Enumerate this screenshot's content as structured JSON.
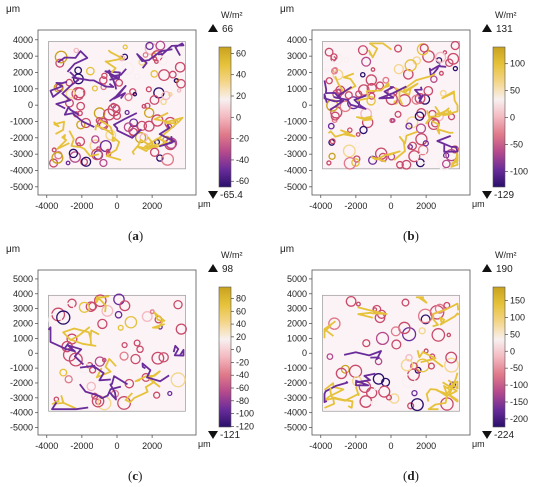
{
  "chart_data": [
    {
      "type": "heatmap",
      "panel_label": "a",
      "unit": "W/m²",
      "axis_unit": "μm",
      "xlim": [
        -4500,
        4500
      ],
      "ylim": [
        -5500,
        4600
      ],
      "x_ticks": [
        -4000,
        -2000,
        0,
        2000
      ],
      "y_ticks": [
        4000,
        3000,
        2000,
        1000,
        0,
        -1000,
        -2000,
        -3000,
        -4000,
        -5000
      ],
      "color_range": [
        -65.4,
        66
      ],
      "color_ticks": [
        60,
        40,
        20,
        0,
        -20,
        -40,
        -60
      ],
      "max_label": "66",
      "min_label": "-65.4",
      "colormap": [
        "#2a0f6b",
        "#6a2c9a",
        "#b54a8c",
        "#e07a8a",
        "#f3b9c0",
        "#f8f0f0",
        "#f4d58a",
        "#e6c23a",
        "#c9a21e"
      ]
    },
    {
      "type": "heatmap",
      "panel_label": "b",
      "unit": "W/m²",
      "axis_unit": "μm",
      "xlim": [
        -4500,
        4500
      ],
      "ylim": [
        -5500,
        4600
      ],
      "x_ticks": [
        -4000,
        -2000,
        0,
        2000
      ],
      "y_ticks": [
        4000,
        3000,
        2000,
        1000,
        0,
        -1000,
        -2000,
        -3000,
        -4000,
        -5000
      ],
      "color_range": [
        -129,
        131
      ],
      "color_ticks": [
        100,
        50,
        0,
        -50,
        -100
      ],
      "max_label": "131",
      "min_label": "-129",
      "colormap": [
        "#2a0f6b",
        "#6a2c9a",
        "#b54a8c",
        "#e07a8a",
        "#f3b9c0",
        "#f8f0f0",
        "#f4d58a",
        "#e6c23a",
        "#c9a21e"
      ]
    },
    {
      "type": "heatmap",
      "panel_label": "c",
      "unit": "W/m²",
      "axis_unit": "μm",
      "xlim": [
        -4500,
        4500
      ],
      "ylim": [
        -5500,
        5600
      ],
      "x_ticks": [
        -4000,
        -2000,
        0,
        2000
      ],
      "y_ticks": [
        5000,
        4000,
        3000,
        2000,
        1000,
        0,
        -1000,
        -2000,
        -3000,
        -4000,
        -5000
      ],
      "color_range": [
        -121,
        98
      ],
      "color_ticks": [
        80,
        60,
        40,
        20,
        0,
        -20,
        -40,
        -60,
        -80,
        -100,
        -120
      ],
      "max_label": "98",
      "min_label": "-121",
      "colormap": [
        "#2a0f6b",
        "#6a2c9a",
        "#b54a8c",
        "#e07a8a",
        "#f3b9c0",
        "#f8f0f0",
        "#f4d58a",
        "#e6c23a",
        "#c9a21e"
      ]
    },
    {
      "type": "heatmap",
      "panel_label": "d",
      "unit": "W/m²",
      "axis_unit": "μm",
      "xlim": [
        -4500,
        4500
      ],
      "ylim": [
        -5500,
        5600
      ],
      "x_ticks": [
        -4000,
        -2000,
        0,
        2000
      ],
      "y_ticks": [
        5000,
        4000,
        3000,
        2000,
        1000,
        0,
        -1000,
        -2000,
        -3000,
        -4000,
        -5000
      ],
      "color_range": [
        -224,
        190
      ],
      "color_ticks": [
        150,
        100,
        50,
        0,
        -50,
        -100,
        -150,
        -200
      ],
      "max_label": "190",
      "min_label": "-224",
      "colormap": [
        "#2a0f6b",
        "#6a2c9a",
        "#b54a8c",
        "#e07a8a",
        "#f3b9c0",
        "#f8f0f0",
        "#f4d58a",
        "#e6c23a",
        "#c9a21e"
      ]
    }
  ]
}
